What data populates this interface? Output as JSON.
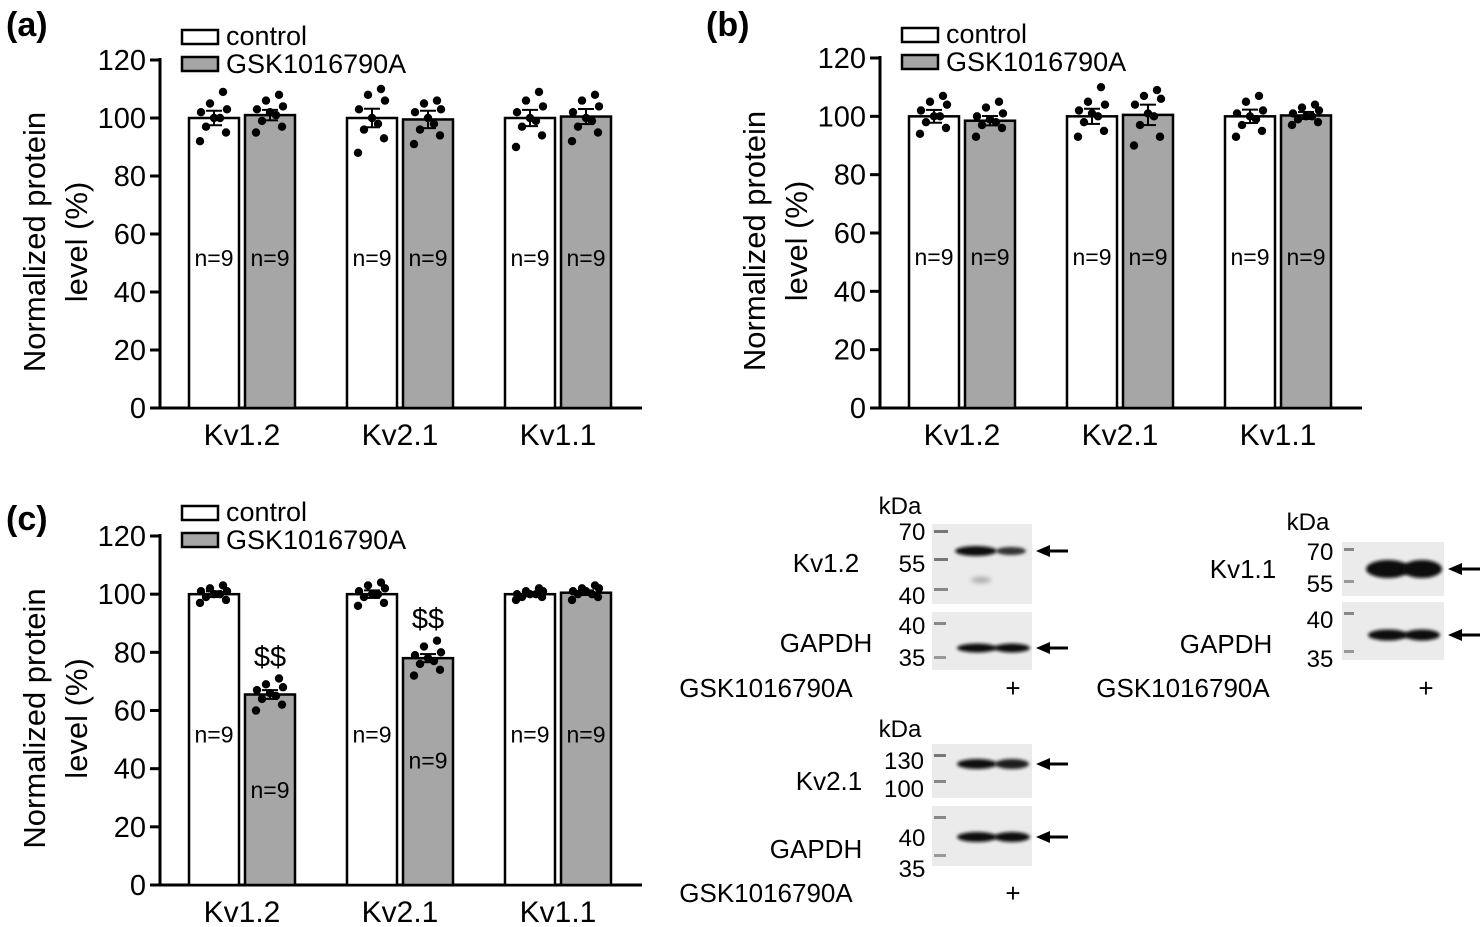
{
  "legend": {
    "control": "control",
    "treatment": "GSK1016790A"
  },
  "colors": {
    "control_fill": "#ffffff",
    "treatment_fill": "#a6a6a6",
    "axis": "#000000",
    "dots": "#000000"
  },
  "chart_data": [
    {
      "panel_label": "(a)",
      "type": "bar",
      "ylabel": "Normalized protein level (%)",
      "ylim": [
        0,
        120
      ],
      "yticks": [
        0,
        20,
        40,
        60,
        80,
        100,
        120
      ],
      "categories": [
        "Kv1.2",
        "Kv2.1",
        "Kv1.1"
      ],
      "legend_position": "top-left",
      "series": [
        {
          "name": "control",
          "values": [
            100,
            100,
            100
          ],
          "sem": [
            2.5,
            3.2,
            2.8
          ],
          "n": [
            "n=9",
            "n=9",
            "n=9"
          ],
          "points": [
            [
              92,
              95,
              97,
              100,
              100,
              102,
              103,
              105,
              109
            ],
            [
              88,
              93,
              96,
              98,
              100,
              103,
              106,
              108,
              110
            ],
            [
              90,
              94,
              97,
              99,
              100,
              102,
              104,
              106,
              109
            ]
          ]
        },
        {
          "name": "GSK1016790A",
          "values": [
            101,
            99.5,
            100.5
          ],
          "sem": [
            1.8,
            3.0,
            2.6
          ],
          "n": [
            "n=9",
            "n=9",
            "n=9"
          ],
          "points": [
            [
              95,
              97,
              99,
              101,
              102,
              103,
              104,
              106,
              108
            ],
            [
              91,
              94,
              96,
              98,
              100,
              102,
              103,
              105,
              106
            ],
            [
              92,
              95,
              97,
              99,
              100,
              102,
              104,
              106,
              108
            ]
          ]
        }
      ]
    },
    {
      "panel_label": "(b)",
      "type": "bar",
      "ylabel": "Normalized protein level (%)",
      "ylim": [
        0,
        120
      ],
      "yticks": [
        0,
        20,
        40,
        60,
        80,
        100,
        120
      ],
      "categories": [
        "Kv1.2",
        "Kv2.1",
        "Kv1.1"
      ],
      "legend_position": "top-left",
      "series": [
        {
          "name": "control",
          "values": [
            100,
            100,
            100
          ],
          "sem": [
            2.2,
            2.6,
            2.3
          ],
          "n": [
            "n=9",
            "n=9",
            "n=9"
          ],
          "points": [
            [
              94,
              96,
              98,
              100,
              100,
              102,
              104,
              105,
              107
            ],
            [
              93,
              95,
              98,
              100,
              101,
              102,
              104,
              105,
              110
            ],
            [
              93,
              95,
              97,
              99,
              100,
              101,
              102,
              105,
              107
            ]
          ]
        },
        {
          "name": "GSK1016790A",
          "values": [
            98.5,
            100.5,
            100.3
          ],
          "sem": [
            1.6,
            3.5,
            1.2
          ],
          "n": [
            "n=9",
            "n=9",
            "n=9"
          ],
          "points": [
            [
              93,
              96,
              97,
              98,
              99,
              100,
              101,
              103,
              105
            ],
            [
              90,
              93,
              97,
              100,
              101,
              104,
              106,
              107,
              109
            ],
            [
              97,
              98,
              99,
              100,
              100,
              101,
              102,
              103,
              104
            ]
          ]
        }
      ]
    },
    {
      "panel_label": "(c)",
      "type": "bar",
      "ylabel": "Normalized protein level (%)",
      "ylim": [
        0,
        120
      ],
      "yticks": [
        0,
        20,
        40,
        60,
        80,
        100,
        120
      ],
      "categories": [
        "Kv1.2",
        "Kv2.1",
        "Kv1.1"
      ],
      "legend_position": "top-left",
      "significance": [
        "$$",
        "$$",
        ""
      ],
      "series": [
        {
          "name": "control",
          "values": [
            100,
            100,
            100
          ],
          "sem": [
            1.0,
            1.3,
            0.7
          ],
          "n": [
            "n=9",
            "n=9",
            "n=9"
          ],
          "points": [
            [
              97,
              98,
              99,
              100,
              100,
              101,
              101,
              102,
              103
            ],
            [
              96,
              97,
              99,
              100,
              100,
              101,
              102,
              103,
              104
            ],
            [
              98,
              99,
              99,
              100,
              100,
              100,
              101,
              101,
              102
            ]
          ]
        },
        {
          "name": "GSK1016790A",
          "values": [
            65.5,
            78,
            100.5
          ],
          "sem": [
            1.5,
            1.4,
            0.8
          ],
          "n": [
            "n=9",
            "n=9",
            "n=9"
          ],
          "points": [
            [
              60,
              62,
              64,
              65,
              66,
              67,
              68,
              69,
              71
            ],
            [
              72,
              74,
              76,
              77,
              78,
              79,
              80,
              82,
              84
            ],
            [
              98,
              99,
              100,
              100,
              101,
              101,
              102,
              102,
              103
            ]
          ]
        }
      ]
    }
  ],
  "blots": [
    {
      "id": "kv12",
      "unit": "kDa",
      "protein_label": "Kv1.2",
      "protein_markers": [
        "70",
        "55",
        "40"
      ],
      "loading_label": "GAPDH",
      "loading_markers": [
        "40",
        "35"
      ],
      "treatment_label": "GSK1016790A",
      "lane_marks": [
        "",
        "+"
      ]
    },
    {
      "id": "kv21",
      "unit": "kDa",
      "protein_label": "Kv2.1",
      "protein_markers": [
        "130",
        "100"
      ],
      "loading_label": "GAPDH",
      "loading_markers": [
        "40",
        "35"
      ],
      "treatment_label": "GSK1016790A",
      "lane_marks": [
        "",
        "+"
      ]
    },
    {
      "id": "kv11",
      "unit": "kDa",
      "protein_label": "Kv1.1",
      "protein_markers": [
        "70",
        "55"
      ],
      "loading_label": "GAPDH",
      "loading_markers": [
        "40",
        "35"
      ],
      "treatment_label": "GSK1016790A",
      "lane_marks": [
        "",
        "+"
      ]
    }
  ]
}
